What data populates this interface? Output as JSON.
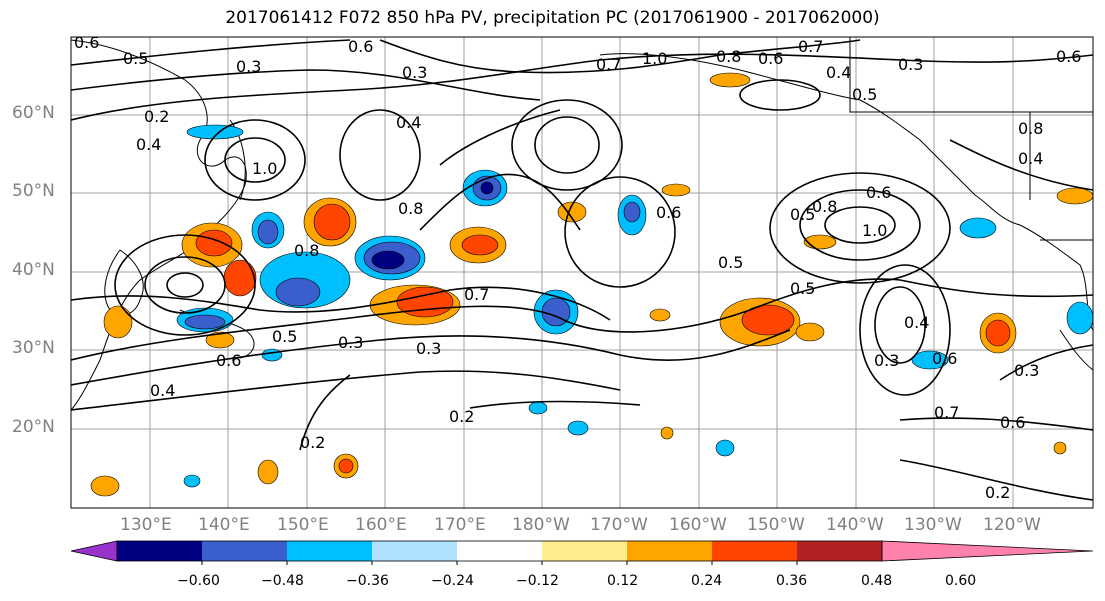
{
  "title": "2017061412 F072 850 hPa PV, precipitation PC (2017061900 - 2017062000)",
  "latitude_labels": [
    "60°N",
    "50°N",
    "40°N",
    "30°N",
    "20°N"
  ],
  "longitude_labels": [
    "130°E",
    "140°E",
    "150°E",
    "160°E",
    "170°E",
    "180°W",
    "170°W",
    "160°W",
    "150°W",
    "140°W",
    "130°W",
    "120°W"
  ],
  "colorbar": {
    "ticks": [
      "−0.60",
      "−0.48",
      "−0.36",
      "−0.24",
      "−0.12",
      "0.12",
      "0.24",
      "0.36",
      "0.48",
      "0.60"
    ],
    "colors": [
      "#9932cc",
      "#000080",
      "#3a5fcd",
      "#00bfff",
      "#b0e2ff",
      "#ffffff",
      "#ffec8b",
      "#ffa500",
      "#ff4500",
      "#b22222",
      "#ff82ab"
    ]
  },
  "contour_labels": [
    "0.6",
    "0.5",
    "0.3",
    "0.6",
    "0.3",
    "0.7",
    "1.0",
    "0.8",
    "0.6",
    "0.7",
    "0.4",
    "0.3",
    "0.6",
    "0.2",
    "0.4",
    "1.0",
    "0.4",
    "0.8",
    "0.5",
    "0.6",
    "0.8",
    "0.5",
    "0.8",
    "1.0",
    "0.6",
    "0.5",
    "0.7",
    "0.8",
    "0.4",
    "0.6",
    "0.5",
    "0.3",
    "0.3",
    "0.6",
    "0.5",
    "0.4",
    "0.7",
    "0.6",
    "0.3",
    "0.2",
    "0.2",
    "0.2",
    "0.3",
    "0.4"
  ]
}
